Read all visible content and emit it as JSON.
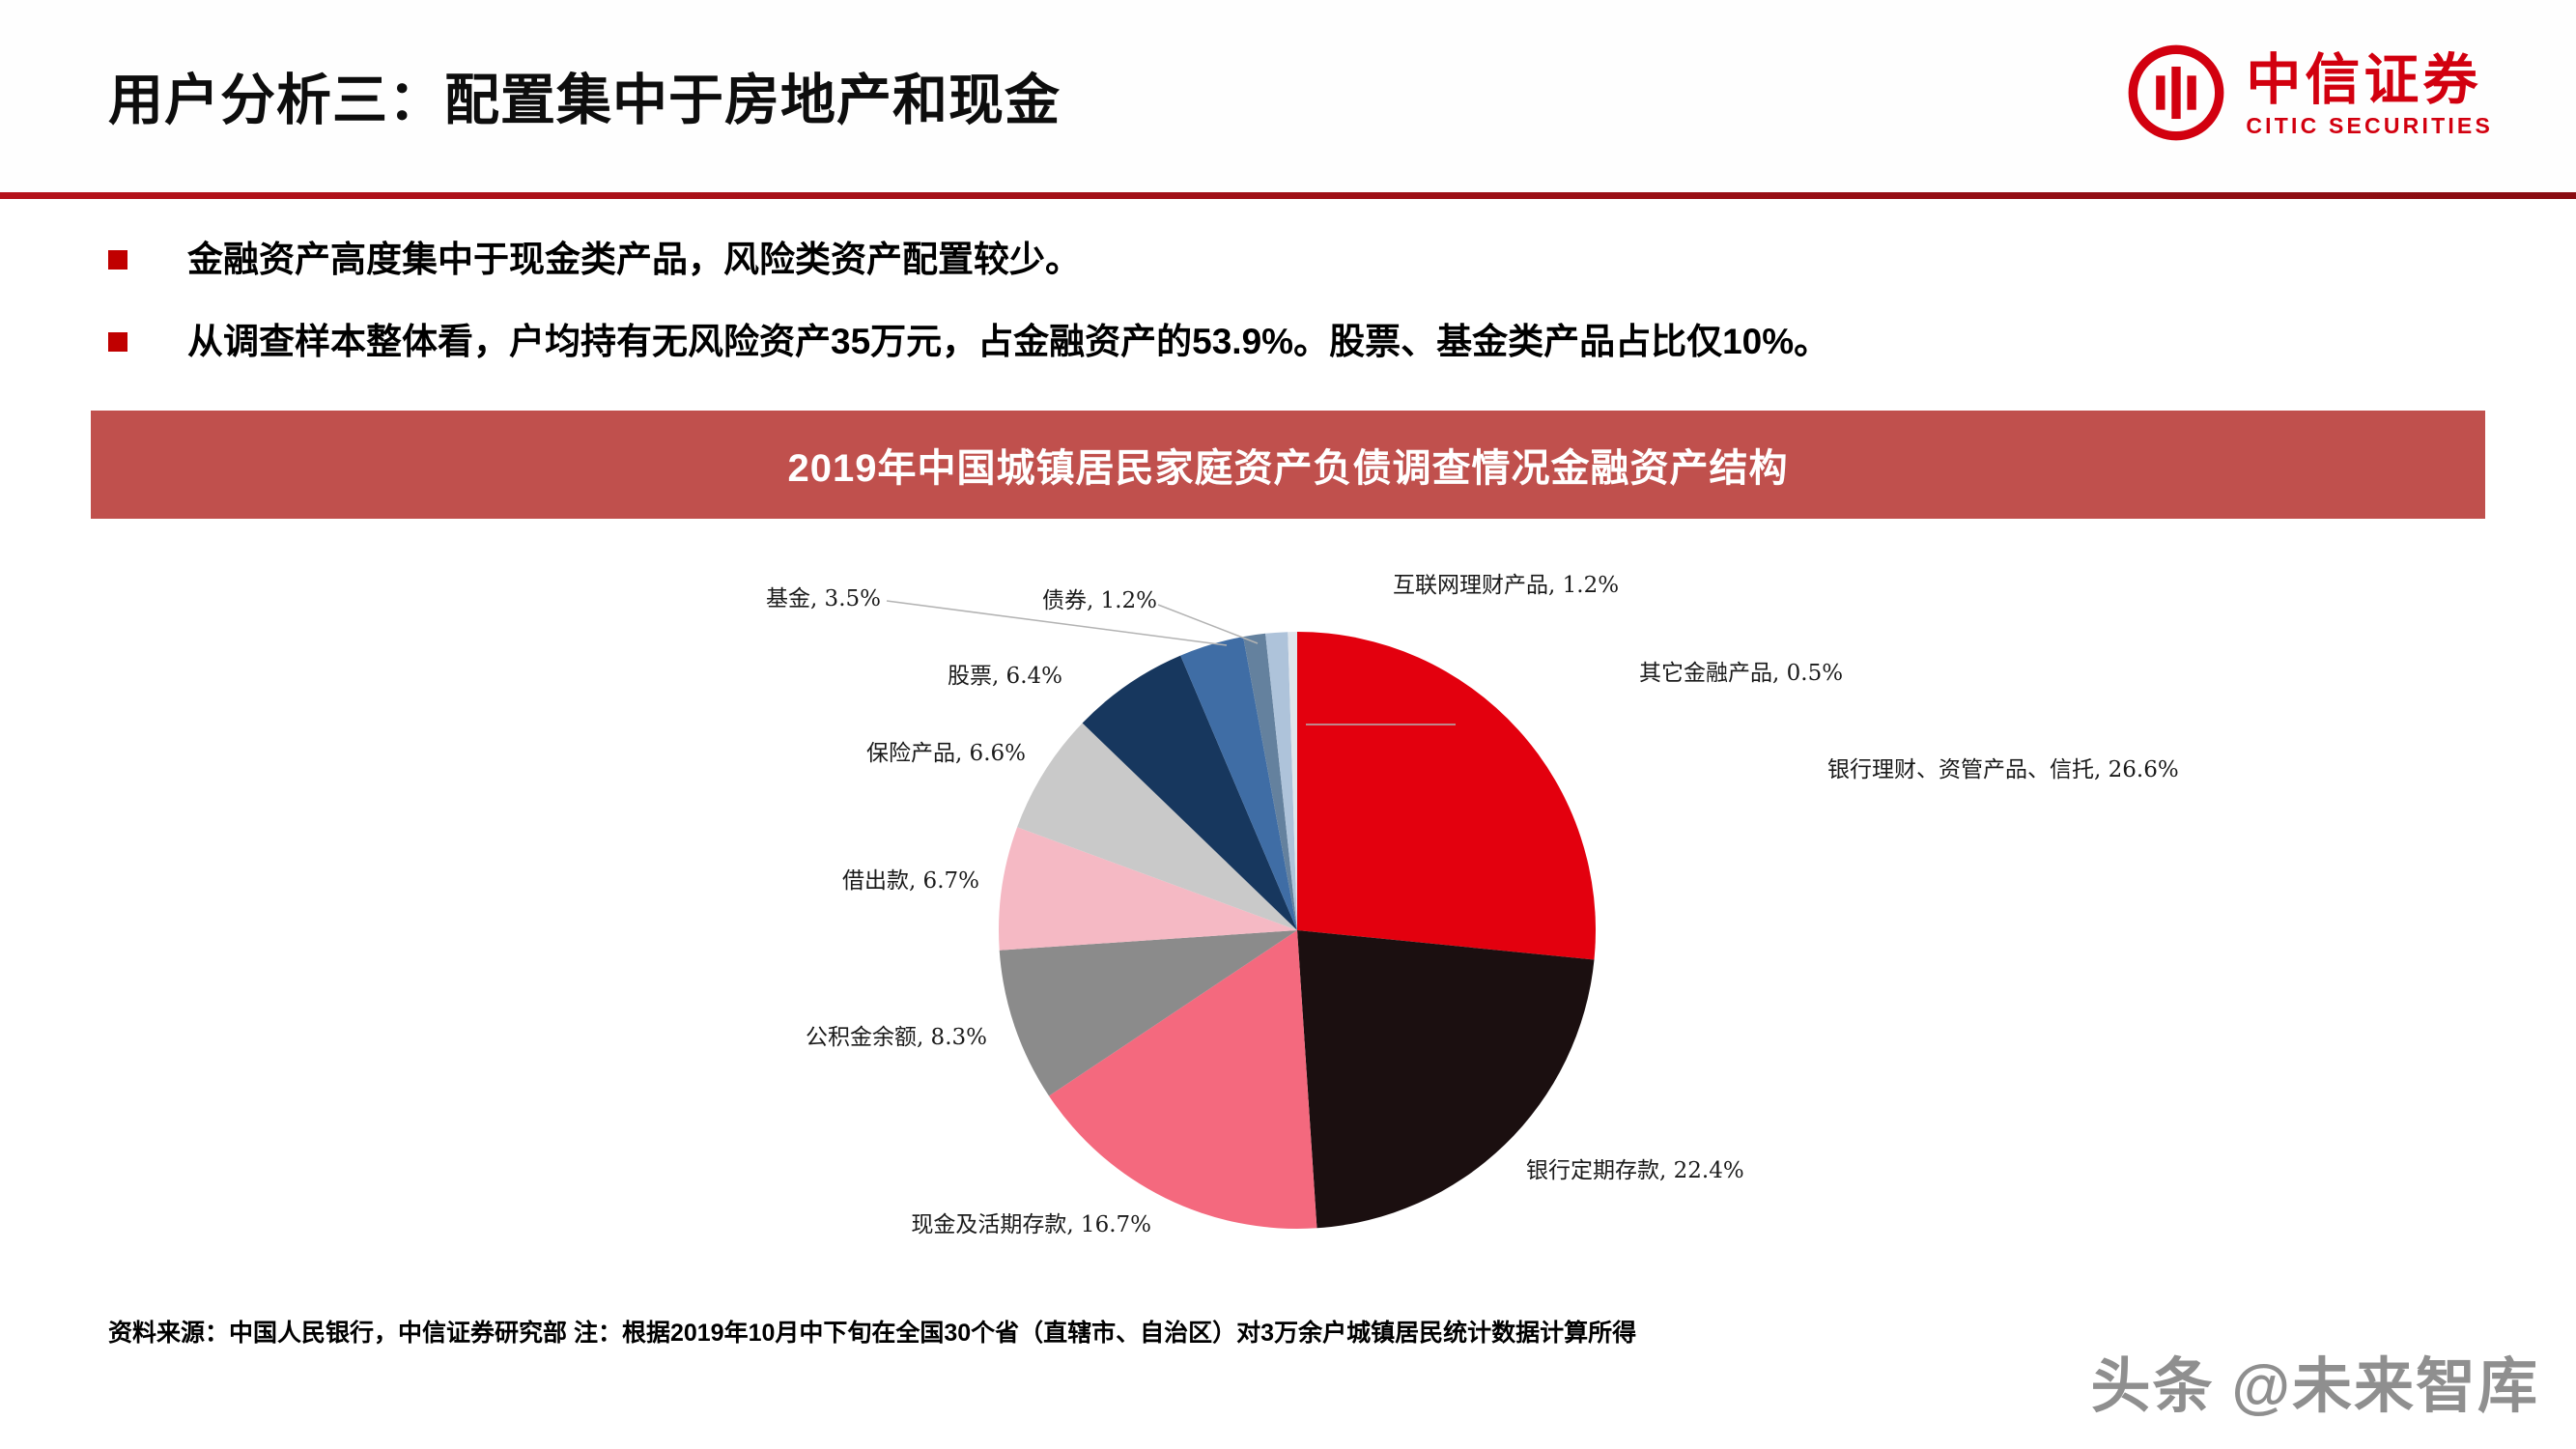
{
  "header": {
    "title": "用户分析三：配置集中于房地产和现金"
  },
  "brand": {
    "name_cn": "中信证券",
    "name_en": "CITIC SECURITIES",
    "accent_color": "#d2000f"
  },
  "bullets": [
    {
      "text": "金融资产高度集中于现金类产品，风险类资产配置较少。"
    },
    {
      "text": "从调查样本整体看，户均持有无风险资产35万元，占金融资产的53.9%。股票、基金类产品占比仅10%。"
    }
  ],
  "banner": {
    "title": "2019年中国城镇居民家庭资产负债调查情况金融资产结构"
  },
  "chart_data": {
    "type": "pie",
    "title": "2019年中国城镇居民家庭资产负债调查情况金融资产结构",
    "unit": "%",
    "start_angle_deg": 0,
    "direction": "clockwise",
    "legend_position": "outside-labels",
    "slices": [
      {
        "label": "银行理财、资管产品、信托",
        "value": 26.6,
        "color": "#e3000e",
        "label_text": "银行理财、资管产品、信托, 26.6%"
      },
      {
        "label": "银行定期存款",
        "value": 22.4,
        "color": "#1b0f10",
        "label_text": "银行定期存款, 22.4%"
      },
      {
        "label": "现金及活期存款",
        "value": 16.7,
        "color": "#f4697e",
        "label_text": "现金及活期存款, 16.7%"
      },
      {
        "label": "公积金余额",
        "value": 8.3,
        "color": "#8b8b8b",
        "label_text": "公积金余额, 8.3%"
      },
      {
        "label": "借出款",
        "value": 6.7,
        "color": "#f5b9c4",
        "label_text": "借出款, 6.7%"
      },
      {
        "label": "保险产品",
        "value": 6.6,
        "color": "#c9c9c9",
        "label_text": "保险产品, 6.6%"
      },
      {
        "label": "股票",
        "value": 6.4,
        "color": "#17375e",
        "label_text": "股票, 6.4%"
      },
      {
        "label": "基金",
        "value": 3.5,
        "color": "#3f6da5",
        "label_text": "基金, 3.5%"
      },
      {
        "label": "债券",
        "value": 1.2,
        "color": "#64819e",
        "label_text": "债券, 1.2%"
      },
      {
        "label": "互联网理财产品",
        "value": 1.2,
        "color": "#aec3da",
        "label_text": "互联网理财产品, 1.2%"
      },
      {
        "label": "其它金融产品",
        "value": 0.5,
        "color": "#dfe5ec",
        "label_text": "其它金融产品, 0.5%"
      }
    ]
  },
  "footer": {
    "source": "资料来源：中国人民银行，中信证券研究部  注：根据2019年10月中下旬在全国30个省（直辖市、自治区）对3万余户城镇居民统计数据计算所得"
  },
  "watermark": {
    "part1": "头条",
    "part2": "@未来智库"
  }
}
